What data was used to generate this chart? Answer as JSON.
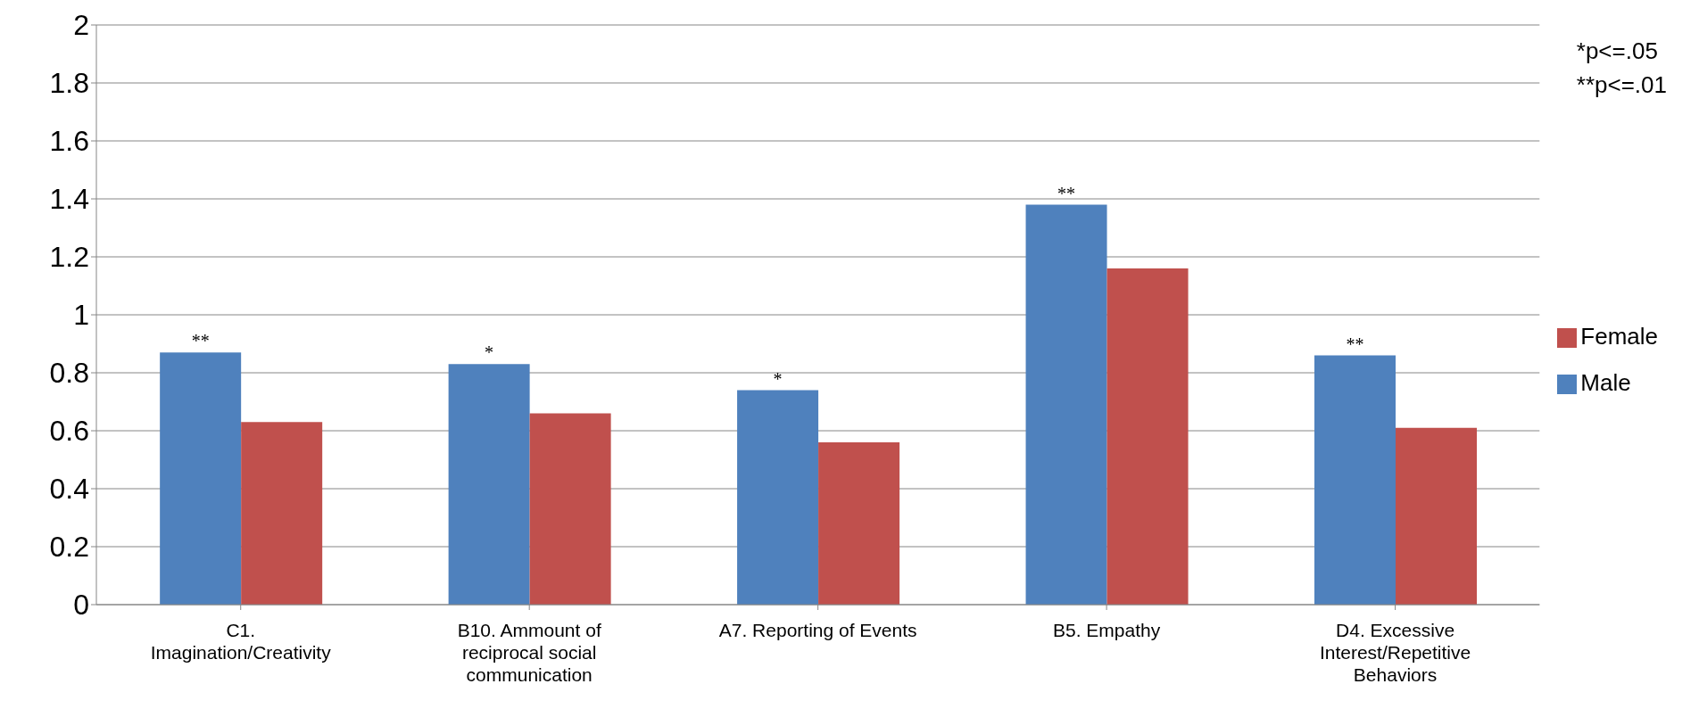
{
  "chart_data": {
    "type": "bar",
    "categories": [
      "C1. Imagination/Creativity",
      "B10. Ammount of reciprocal social communication",
      "A7. Reporting of Events",
      "B5. Empathy",
      "D4. Excessive Interest/Repetitive Behaviors"
    ],
    "series": [
      {
        "name": "Male",
        "color": "#4f81bd",
        "values": [
          0.87,
          0.83,
          0.74,
          1.38,
          0.86
        ]
      },
      {
        "name": "Female",
        "color": "#c0504d",
        "values": [
          0.63,
          0.66,
          0.56,
          1.16,
          0.61
        ]
      }
    ],
    "ylim": [
      0,
      2
    ],
    "yticks": [
      0,
      0.2,
      0.4,
      0.6,
      0.8,
      1,
      1.2,
      1.4,
      1.6,
      1.8,
      2
    ],
    "grid": "y",
    "legend": "right",
    "annotations": [
      {
        "text": "**",
        "x": "C1. Imagination/Creativity",
        "y": 0.87
      },
      {
        "text": "*",
        "x": "B10. Ammount of reciprocal social communication",
        "y": 0.83
      },
      {
        "text": "*",
        "x": "A7. Reporting of Events",
        "y": 0.74
      },
      {
        "text": "**",
        "x": "B5. Empathy",
        "y": 1.38
      },
      {
        "text": "**",
        "x": "D4. Excessive Interest/Repetitive Behaviors",
        "y": 0.86
      },
      "*p<=.05",
      "**p<=.01"
    ]
  }
}
